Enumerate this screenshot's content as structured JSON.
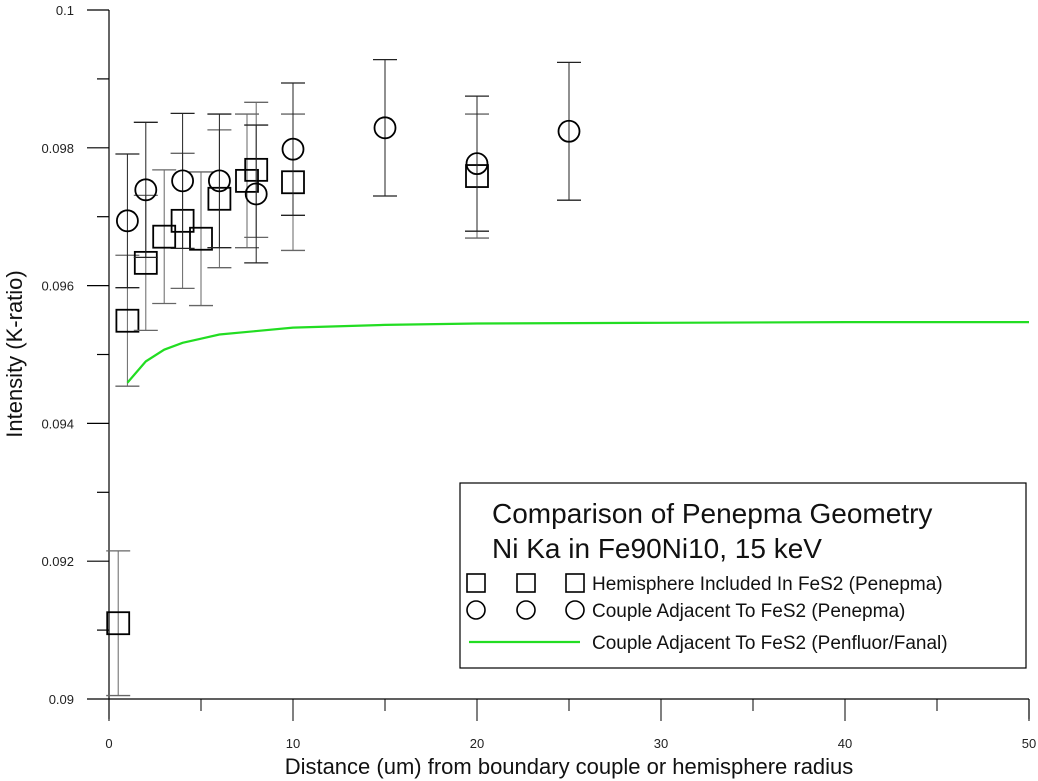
{
  "chart_data": {
    "type": "scatter",
    "title": "Comparison of Penepma Geometry",
    "subtitle": "Ni Ka in Fe90Ni10, 15 keV",
    "xlabel": "Distance (um) from boundary couple or hemisphere radius",
    "ylabel": "Intensity (K-ratio)",
    "xlim": [
      0,
      50
    ],
    "ylim": [
      0.09,
      0.1
    ],
    "x_ticks": [
      0,
      10,
      20,
      30,
      40,
      50
    ],
    "x_tick_labels": [
      "0",
      "10",
      "20",
      "30",
      "40",
      "50"
    ],
    "x_minor_ticks": [
      5,
      15,
      25,
      35,
      45
    ],
    "y_ticks": [
      0.09,
      0.092,
      0.094,
      0.096,
      0.098,
      0.1
    ],
    "y_tick_labels": [
      "0.09",
      "0.092",
      "0.094",
      "0.096",
      "0.098",
      "0.1"
    ],
    "y_minor_ticks": [
      0.091,
      0.093,
      0.095,
      0.097,
      0.099
    ],
    "grid": false,
    "legend_position": "bottom-right",
    "series": [
      {
        "name": "Hemisphere Included In FeS2 (Penepma)",
        "marker": "square",
        "color": "#000000",
        "x": [
          0.5,
          1,
          2,
          3,
          4,
          5,
          6,
          7.5,
          8,
          10,
          20
        ],
        "y": [
          0.0911,
          0.09549,
          0.09633,
          0.09671,
          0.09694,
          0.09668,
          0.09726,
          0.09752,
          0.09768,
          0.0975,
          0.09759
        ],
        "err": [
          0.00105,
          0.00095,
          0.00098,
          0.00097,
          0.00098,
          0.00097,
          0.001,
          0.00097,
          0.00098,
          0.00099,
          0.0009
        ]
      },
      {
        "name": "Couple Adjacent To FeS2 (Penepma)",
        "marker": "circle",
        "color": "#000000",
        "x": [
          1,
          2,
          4,
          6,
          8,
          10,
          15,
          20,
          25
        ],
        "y": [
          0.09694,
          0.09739,
          0.09752,
          0.09752,
          0.09733,
          0.09798,
          0.09829,
          0.09777,
          0.09824
        ],
        "err": [
          0.00097,
          0.00098,
          0.00098,
          0.00097,
          0.001,
          0.00096,
          0.00099,
          0.00098,
          0.001
        ]
      },
      {
        "name": "Couple Adjacent To FeS2 (Penfluor/Fanal)",
        "marker": "line",
        "color": "#22dd22",
        "x": [
          1,
          2,
          3,
          4,
          5,
          6,
          8,
          10,
          15,
          20,
          30,
          40,
          50
        ],
        "y": [
          0.09459,
          0.0949,
          0.09507,
          0.09517,
          0.09523,
          0.09529,
          0.09534,
          0.09539,
          0.09543,
          0.09545,
          0.09546,
          0.09547,
          0.09547
        ]
      }
    ]
  }
}
